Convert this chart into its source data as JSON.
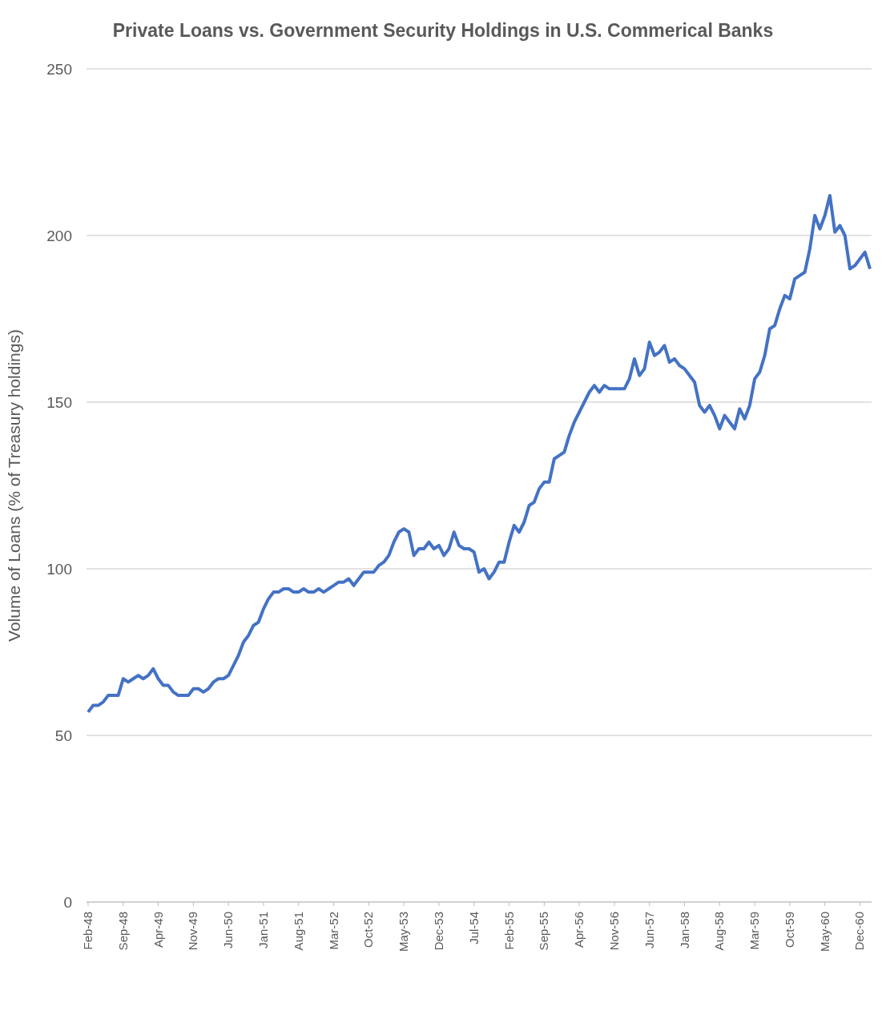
{
  "chart_data": {
    "type": "line",
    "title": "Private Loans vs. Government Security Holdings in U.S. Commerical Banks",
    "ylabel": "Volume of Loans (% of Treasury holdings)",
    "categories": [
      "Feb-48",
      null,
      null,
      null,
      null,
      null,
      null,
      "Sep-48",
      null,
      null,
      null,
      null,
      null,
      null,
      "Apr-49",
      null,
      null,
      null,
      null,
      null,
      null,
      "Nov-49",
      null,
      null,
      null,
      null,
      null,
      null,
      "Jun-50",
      null,
      null,
      null,
      null,
      null,
      null,
      "Jan-51",
      null,
      null,
      null,
      null,
      null,
      null,
      "Aug-51",
      null,
      null,
      null,
      null,
      null,
      null,
      "Mar-52",
      null,
      null,
      null,
      null,
      null,
      null,
      "Oct-52",
      null,
      null,
      null,
      null,
      null,
      null,
      "May-53",
      null,
      null,
      null,
      null,
      null,
      null,
      "Dec-53",
      null,
      null,
      null,
      null,
      null,
      null,
      "Jul-54",
      null,
      null,
      null,
      null,
      null,
      null,
      "Feb-55",
      null,
      null,
      null,
      null,
      null,
      null,
      "Sep-55",
      null,
      null,
      null,
      null,
      null,
      null,
      "Apr-56",
      null,
      null,
      null,
      null,
      null,
      null,
      "Nov-56",
      null,
      null,
      null,
      null,
      null,
      null,
      "Jun-57",
      null,
      null,
      null,
      null,
      null,
      null,
      "Jan-58",
      null,
      null,
      null,
      null,
      null,
      null,
      "Aug-58",
      null,
      null,
      null,
      null,
      null,
      null,
      "Mar-59",
      null,
      null,
      null,
      null,
      null,
      null,
      "Oct-59",
      null,
      null,
      null,
      null,
      null,
      null,
      "May-60",
      null,
      null,
      null,
      null,
      null,
      null,
      "Dec-60",
      null,
      null
    ],
    "series": [
      {
        "color": "#4472c4",
        "values": [
          57,
          59,
          59,
          60,
          62,
          62,
          62,
          67,
          66,
          67,
          68,
          67,
          68,
          70,
          67,
          65,
          65,
          63,
          62,
          62,
          62,
          64,
          64,
          63,
          64,
          66,
          67,
          67,
          68,
          71,
          74,
          78,
          80,
          83,
          84,
          88,
          91,
          93,
          93,
          94,
          94,
          93,
          93,
          94,
          93,
          93,
          94,
          93,
          94,
          95,
          96,
          96,
          97,
          95,
          97,
          99,
          99,
          99,
          101,
          102,
          104,
          108,
          111,
          112,
          111,
          104,
          106,
          106,
          108,
          106,
          107,
          104,
          106,
          111,
          107,
          106,
          106,
          105,
          99,
          100,
          97,
          99,
          102,
          102,
          108,
          113,
          111,
          114,
          119,
          120,
          124,
          126,
          126,
          133,
          134,
          135,
          140,
          144,
          147,
          150,
          153,
          155,
          153,
          155,
          154,
          154,
          154,
          154,
          157,
          163,
          158,
          160,
          168,
          164,
          165,
          167,
          162,
          163,
          161,
          160,
          158,
          156,
          149,
          147,
          149,
          146,
          142,
          146,
          144,
          142,
          148,
          145,
          149,
          157,
          159,
          164,
          172,
          173,
          178,
          182,
          181,
          187,
          188,
          189,
          196,
          206,
          202,
          206,
          212,
          201,
          203,
          200,
          190,
          191,
          193,
          195,
          190
        ]
      }
    ],
    "ylim": [
      0,
      250
    ],
    "yticks": [
      0,
      50,
      100,
      150,
      200,
      250
    ],
    "grid": "y",
    "line_style": "solid"
  }
}
